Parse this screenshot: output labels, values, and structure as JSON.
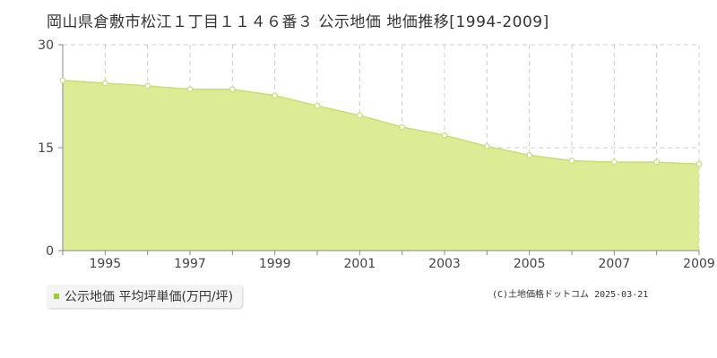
{
  "title": "岡山県倉敷市松江１丁目１１４６番３ 公示地価 地価推移[1994-2009]",
  "colors": {
    "area_fill": "#dcec94",
    "line": "#c8dc78",
    "marker_fill": "#ffffff",
    "grid": "#cccccc",
    "legend_swatch": "#9acd32"
  },
  "chart_data": {
    "type": "area",
    "x": [
      1994,
      1995,
      1996,
      1997,
      1998,
      1999,
      2000,
      2001,
      2002,
      2003,
      2004,
      2005,
      2006,
      2007,
      2008,
      2009
    ],
    "series": [
      {
        "name": "公示地価 平均坪単価(万円/坪)",
        "values": [
          24.8,
          24.4,
          24.0,
          23.5,
          23.5,
          22.6,
          21.1,
          19.7,
          18.0,
          16.8,
          15.2,
          13.9,
          13.1,
          12.9,
          12.9,
          12.6
        ]
      }
    ],
    "x_tick_labels": [
      "1995",
      "1997",
      "1999",
      "2001",
      "2003",
      "2005",
      "2007",
      "2009"
    ],
    "y_tick_labels": [
      "0",
      "15",
      "30"
    ],
    "xlim": [
      1994,
      2009
    ],
    "ylim": [
      0,
      30
    ],
    "grid": true,
    "legend": "bottom-left"
  },
  "legend": {
    "label": "公示地価 平均坪単価(万円/坪)"
  },
  "copyright": "(C)土地価格ドットコム 2025-03-21"
}
